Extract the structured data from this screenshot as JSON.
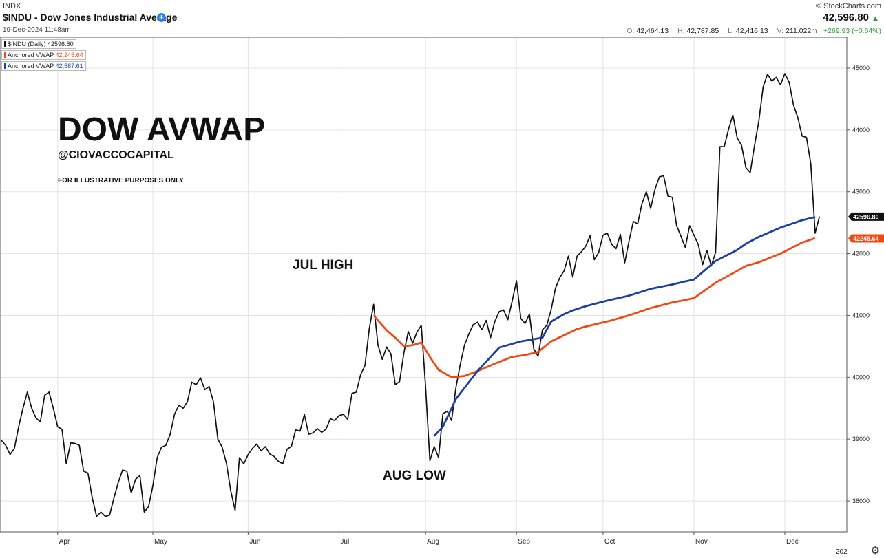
{
  "header": {
    "symbol": "INDX",
    "title": "$INDU - Dow Jones Industrial Average",
    "date": "19-Dec-2024 11:48am",
    "brand": "© StockCharts.com",
    "price": "42,596.80",
    "ohlc": {
      "o": "42,464.13",
      "h": "42,787.85",
      "l": "42,416.13",
      "v": "211.022m",
      "change": "+269.93 (+0.64%)"
    },
    "ohlc_labels": {
      "o": "O:",
      "h": "H:",
      "l": "L:",
      "v": "V:"
    }
  },
  "legend": [
    {
      "label": "$INDU (Daily)",
      "value": "42596.80",
      "color": "#111111"
    },
    {
      "label": "Anchored VWAP",
      "value": "42,245.64",
      "color": "#f04a14"
    },
    {
      "label": "Anchored VWAP",
      "value": "42,587.61",
      "color": "#1b3fa0"
    }
  ],
  "annotations": {
    "title": "DOW AVWAP",
    "handle": "@CIOVACCOCAPITAL",
    "disclaimer": "FOR ILLUSTRATIVE PURPOSES ONLY",
    "jul_high": "JUL HIGH",
    "aug_low": "AUG LOW"
  },
  "chart_data": {
    "type": "line",
    "ylim": [
      37500,
      45500
    ],
    "y_ticks": [
      38000,
      39000,
      40000,
      41000,
      42000,
      43000,
      44000,
      45000
    ],
    "y_tick_labels": [
      "38000",
      "39000",
      "40000",
      "41000",
      "42000",
      "43000",
      "44000",
      "45000"
    ],
    "x_ticks": [
      "Apr",
      "May",
      "Jun",
      "Jul",
      "Aug",
      "Sep",
      "Oct",
      "Nov",
      "Dec"
    ],
    "x_edge_label": "202",
    "last_price_tags": [
      {
        "label": "42596.80",
        "value": 42596.8,
        "color": "#111111"
      },
      {
        "label": "42245.64",
        "value": 42245.64,
        "color": "#f04a14"
      }
    ],
    "grid": true,
    "series": [
      {
        "name": "$INDU (Daily)",
        "color": "#111111",
        "x": [
          0,
          1,
          2,
          3,
          4,
          5,
          6,
          7,
          8,
          9,
          10,
          11,
          12,
          13,
          14,
          15,
          16,
          17,
          18,
          19,
          20,
          21,
          22,
          23,
          24,
          25,
          26,
          27,
          28,
          29,
          30,
          31,
          32,
          33,
          34,
          35,
          36,
          37,
          38,
          39,
          40,
          41,
          42,
          43,
          44,
          45,
          46,
          47,
          48,
          49,
          50,
          51,
          52,
          53,
          54,
          55,
          56,
          57,
          58,
          59,
          60,
          61,
          62,
          63,
          64,
          65,
          66,
          67,
          68,
          69,
          70,
          71,
          72,
          73,
          74,
          75,
          76,
          77,
          78,
          79,
          80,
          81,
          82,
          83,
          84,
          85,
          86,
          87,
          88,
          89,
          90,
          91,
          92,
          93,
          94,
          95,
          96,
          97,
          98,
          99,
          100,
          101,
          102,
          103,
          104,
          105,
          106,
          107,
          108,
          109,
          110,
          111,
          112,
          113,
          114,
          115,
          116,
          117,
          118,
          119,
          120,
          121,
          122,
          123,
          124,
          125,
          126,
          127,
          128,
          129,
          130,
          131,
          132,
          133,
          134,
          135,
          136,
          137,
          138,
          139,
          140,
          141,
          142,
          143,
          144,
          145,
          146,
          147,
          148,
          149,
          150,
          151,
          152,
          153,
          154,
          155,
          156,
          157,
          158,
          159,
          160,
          161,
          162,
          163,
          164,
          165,
          166,
          167,
          168,
          169,
          170,
          171,
          172,
          173,
          174,
          175,
          176,
          177,
          178,
          179,
          180,
          181,
          182,
          183,
          184,
          185,
          186,
          187,
          188,
          189
        ],
        "values": [
          38980,
          38900,
          38750,
          38850,
          39200,
          39500,
          39760,
          39500,
          39340,
          39280,
          39710,
          39760,
          39500,
          39200,
          39160,
          38600,
          38940,
          38930,
          38900,
          38480,
          38450,
          38050,
          37750,
          37820,
          37750,
          37770,
          38050,
          38300,
          38500,
          38480,
          38130,
          38350,
          38410,
          37820,
          37910,
          38250,
          38700,
          38870,
          38900,
          39080,
          39400,
          39550,
          39500,
          39610,
          39920,
          39880,
          39990,
          39800,
          39850,
          39600,
          39000,
          38870,
          38610,
          38160,
          37850,
          38700,
          38600,
          38750,
          38850,
          38920,
          38810,
          38880,
          38760,
          38720,
          38640,
          38600,
          38840,
          38880,
          39150,
          39130,
          39400,
          39080,
          39100,
          39170,
          39110,
          39160,
          39330,
          39300,
          39380,
          39400,
          39320,
          39740,
          39760,
          40040,
          40190,
          40790,
          41180,
          40520,
          40290,
          40490,
          40380,
          39880,
          39930,
          40400,
          40740,
          40550,
          40730,
          40840,
          39860,
          38650,
          38880,
          38700,
          39410,
          39450,
          39300,
          39830,
          40200,
          40520,
          40700,
          40850,
          40890,
          40770,
          40920,
          40640,
          40900,
          41060,
          41090,
          40930,
          41230,
          41560,
          40950,
          40870,
          41020,
          40460,
          40340,
          40770,
          40840,
          41090,
          41440,
          41610,
          41720,
          41960,
          41620,
          41960,
          42030,
          42120,
          42290,
          41900,
          42020,
          42300,
          42330,
          42150,
          42080,
          42310,
          41850,
          42200,
          42520,
          42480,
          42810,
          43000,
          42730,
          43040,
          43240,
          43260,
          42930,
          42910,
          42450,
          42280,
          42100,
          42450,
          42300,
          42150,
          41820,
          42050,
          41800,
          42020,
          43730,
          43730,
          44010,
          44240,
          43870,
          43750,
          43390,
          43310,
          43750,
          44150,
          44700,
          44900,
          44790,
          44850,
          44730,
          44910,
          44770,
          44400,
          44200,
          43900,
          43880,
          43450,
          42330,
          42600
        ]
      },
      {
        "name": "Anchored VWAP",
        "color": "#1b3fa0",
        "x": [
          100,
          102,
          105,
          110,
          115,
          120,
          125,
          127,
          130,
          132,
          135,
          140,
          145,
          150,
          155,
          158,
          160,
          165,
          170,
          172,
          175,
          180,
          185,
          188
        ],
        "values": [
          39050,
          39200,
          39650,
          40100,
          40480,
          40580,
          40640,
          40900,
          41020,
          41080,
          41150,
          41240,
          41320,
          41430,
          41500,
          41550,
          41580,
          41880,
          42060,
          42160,
          42270,
          42420,
          42540,
          42590
        ]
      },
      {
        "name": "Anchored VWAP",
        "color": "#f04a14",
        "x": [
          86,
          89,
          91,
          93,
          95,
          97,
          99,
          101,
          104,
          107,
          110,
          114,
          118,
          121,
          124,
          127,
          130,
          133,
          135,
          138,
          141,
          145,
          150,
          155,
          158,
          160,
          165,
          170,
          172,
          175,
          180,
          185,
          188
        ],
        "values": [
          41000,
          40760,
          40640,
          40500,
          40520,
          40560,
          40330,
          40120,
          40000,
          40020,
          40100,
          40220,
          40330,
          40360,
          40410,
          40580,
          40680,
          40780,
          40820,
          40870,
          40920,
          41000,
          41120,
          41210,
          41250,
          41280,
          41530,
          41720,
          41800,
          41860,
          42000,
          42180,
          42250
        ]
      }
    ]
  }
}
